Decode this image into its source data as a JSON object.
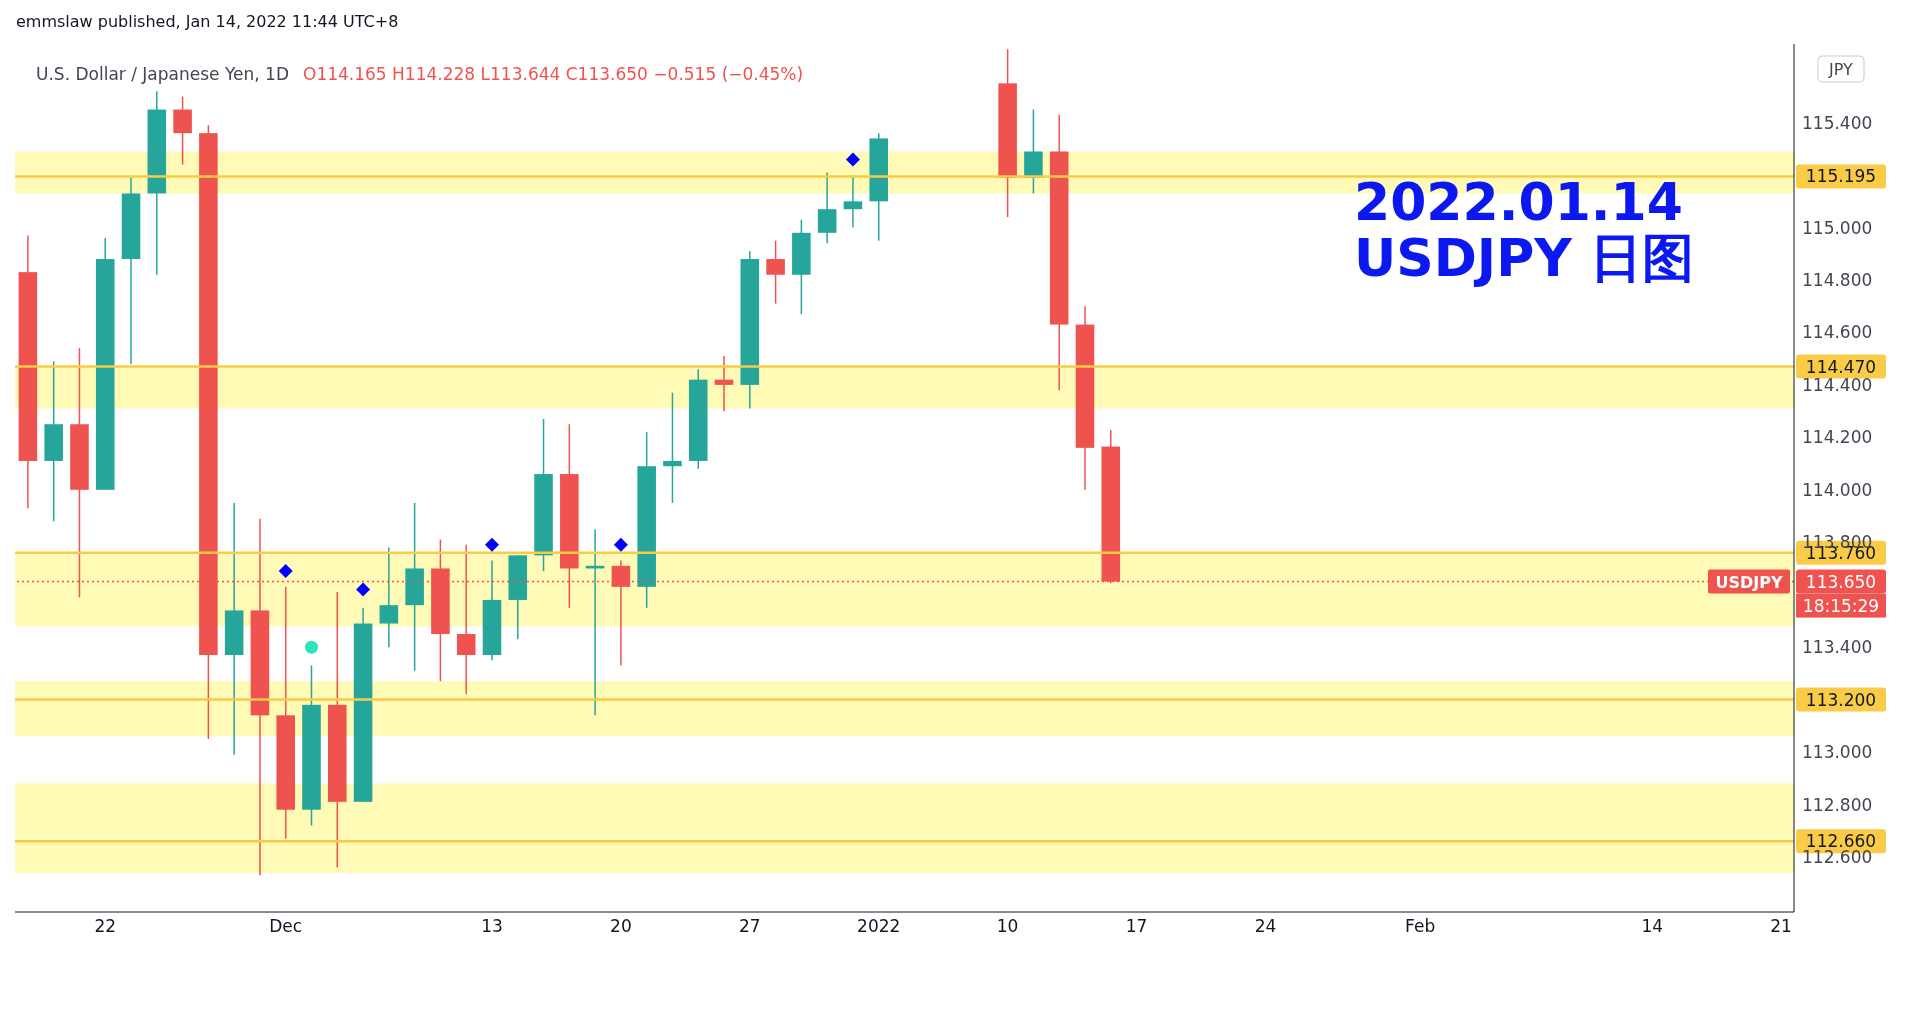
{
  "chart_data": {
    "type": "candlestick",
    "title": "2022.01.14",
    "subtitle": "USDJPY 日图",
    "ylabel": "JPY",
    "categories": [
      null,
      null,
      null,
      "22",
      null,
      null,
      null,
      null,
      null,
      null,
      "Dec",
      null,
      null,
      null,
      null,
      null,
      null,
      null,
      "13",
      null,
      null,
      null,
      null,
      "20",
      null,
      null,
      null,
      null,
      "27",
      null,
      null,
      null,
      null,
      "2022",
      null,
      null,
      null,
      null,
      "10",
      null,
      null,
      null,
      null,
      "17",
      null,
      null,
      null,
      null,
      "24",
      null,
      null,
      null,
      null,
      null,
      "Feb",
      null,
      null,
      null,
      null,
      null,
      null,
      null,
      null,
      "14",
      null,
      null,
      null,
      null,
      "21"
    ],
    "ohlc": [
      [
        114.83,
        114.97,
        113.93,
        114.11
      ],
      [
        114.11,
        114.49,
        113.88,
        114.25
      ],
      [
        114.25,
        114.54,
        113.59,
        114.0
      ],
      [
        114.0,
        114.96,
        114.0,
        114.88
      ],
      [
        114.88,
        115.19,
        114.48,
        115.13
      ],
      [
        115.13,
        115.52,
        114.82,
        115.45
      ],
      [
        115.45,
        115.5,
        115.24,
        115.36
      ],
      [
        115.36,
        115.39,
        113.05,
        113.37
      ],
      [
        113.37,
        113.95,
        112.99,
        113.54
      ],
      [
        113.54,
        113.89,
        112.53,
        113.14
      ],
      [
        113.14,
        113.63,
        112.67,
        112.78
      ],
      [
        112.78,
        113.33,
        112.72,
        113.18
      ],
      [
        113.18,
        113.61,
        112.56,
        112.81
      ],
      [
        112.81,
        113.55,
        112.81,
        113.49
      ],
      [
        113.49,
        113.78,
        113.4,
        113.56
      ],
      [
        113.56,
        113.95,
        113.31,
        113.7
      ],
      [
        113.7,
        113.81,
        113.27,
        113.45
      ],
      [
        113.45,
        113.79,
        113.22,
        113.37
      ],
      [
        113.37,
        113.73,
        113.35,
        113.58
      ],
      [
        113.58,
        113.75,
        113.43,
        113.75
      ],
      [
        113.75,
        114.27,
        113.69,
        114.06
      ],
      [
        114.06,
        114.25,
        113.55,
        113.7
      ],
      [
        113.7,
        113.85,
        113.14,
        113.71
      ],
      [
        113.71,
        113.73,
        113.33,
        113.63
      ],
      [
        113.63,
        114.22,
        113.55,
        114.09
      ],
      [
        114.09,
        114.37,
        113.95,
        114.11
      ],
      [
        114.11,
        114.46,
        114.08,
        114.42
      ],
      [
        114.42,
        114.51,
        114.3,
        114.4
      ],
      [
        114.4,
        114.91,
        114.31,
        114.88
      ],
      [
        114.88,
        114.95,
        114.71,
        114.82
      ],
      [
        114.82,
        115.03,
        114.67,
        114.98
      ],
      [
        114.98,
        115.21,
        114.94,
        115.07
      ],
      [
        115.07,
        115.2,
        115.0,
        115.1
      ],
      [
        115.1,
        115.36,
        114.95,
        115.34
      ],
      null,
      null,
      null,
      null,
      [
        115.55,
        115.68,
        115.04,
        115.19
      ],
      [
        115.19,
        115.45,
        115.13,
        115.29
      ],
      [
        115.29,
        115.43,
        114.38,
        114.63
      ],
      [
        114.63,
        114.7,
        114.0,
        114.16
      ],
      [
        114.165,
        114.228,
        113.644,
        113.65
      ],
      null,
      null,
      null,
      null,
      null,
      null,
      null,
      null,
      null,
      null,
      null,
      null,
      null,
      null,
      null,
      null,
      null,
      null,
      null,
      null,
      null,
      null,
      null,
      null,
      null,
      null
    ],
    "colors": [
      "#ef5350",
      "#26a69a",
      "#ef5350",
      "#26a69a",
      "#26a69a",
      "#26a69a",
      "#ef5350",
      "#ef5350",
      "#26a69a",
      "#ef5350",
      "#ef5350",
      "#26a69a",
      "#ef5350",
      "#26a69a",
      "#26a69a",
      "#26a69a",
      "#ef5350",
      "#ef5350",
      "#26a69a",
      "#26a69a",
      "#26a69a",
      "#ef5350",
      "#26a69a",
      "#ef5350",
      "#26a69a",
      "#26a69a",
      "#26a69a",
      "#ef5350",
      "#26a69a",
      "#ef5350",
      "#26a69a",
      "#26a69a",
      "#26a69a",
      "#26a69a",
      null,
      null,
      null,
      null,
      "#ef5350",
      "#26a69a",
      "#ef5350",
      "#ef5350",
      "#ef5350",
      null,
      null,
      null,
      null,
      null,
      null,
      null,
      null,
      null,
      null,
      null,
      null,
      null,
      null,
      null,
      null,
      null,
      null,
      null,
      null,
      null,
      null,
      null,
      null,
      null,
      null
    ],
    "series": [
      {
        "type": "scatter",
        "marker": "diamond",
        "color": "#0000ff",
        "values": [
          null,
          null,
          null,
          null,
          null,
          null,
          null,
          null,
          null,
          null,
          113.69,
          null,
          null,
          113.62,
          null,
          null,
          null,
          null,
          113.79,
          null,
          null,
          null,
          null,
          113.79,
          null,
          null,
          null,
          null,
          null,
          null,
          null,
          null,
          115.26,
          null,
          null,
          null,
          null,
          null,
          null,
          null,
          null,
          null,
          null,
          null,
          null,
          null,
          null,
          null,
          null,
          null,
          null,
          null,
          null,
          null,
          null,
          null,
          null,
          null,
          null,
          null,
          null,
          null,
          null,
          null,
          null,
          null,
          null,
          null,
          null
        ]
      },
      {
        "type": "scatter",
        "marker": "circle",
        "color": "#2ee6b5",
        "values": [
          null,
          null,
          null,
          null,
          null,
          null,
          null,
          null,
          null,
          null,
          null,
          113.4,
          null,
          null,
          null,
          null,
          null,
          null,
          null,
          null,
          null,
          null,
          null,
          null,
          null,
          null,
          null,
          null,
          null,
          null,
          null,
          null,
          null,
          null,
          null,
          null,
          null,
          null,
          null,
          null,
          null,
          null,
          null,
          null,
          null,
          null,
          null,
          null,
          null,
          null,
          null,
          null,
          null,
          null,
          null,
          null,
          null,
          null,
          null,
          null,
          null,
          null,
          null,
          null,
          null,
          null,
          null,
          null,
          null
        ]
      }
    ],
    "ylim": [
      112.39,
      115.7
    ],
    "yticks": [
      {
        "value": 112.6,
        "label": "112.600"
      },
      {
        "value": 112.8,
        "label": "112.800"
      },
      {
        "value": 113.0,
        "label": "113.000"
      },
      {
        "value": 113.4,
        "label": "113.400"
      },
      {
        "value": 113.8,
        "label": "113.800"
      },
      {
        "value": 114.0,
        "label": "114.000"
      },
      {
        "value": 114.2,
        "label": "114.200"
      },
      {
        "value": 114.4,
        "label": "114.400"
      },
      {
        "value": 114.6,
        "label": "114.600"
      },
      {
        "value": 114.8,
        "label": "114.800"
      },
      {
        "value": 115.0,
        "label": "115.000"
      },
      {
        "value": 115.4,
        "label": "115.400"
      }
    ],
    "bands": [
      {
        "axis": "y",
        "from": 115.13,
        "to": 115.29,
        "color": "#fffab5"
      },
      {
        "axis": "y",
        "from": 114.31,
        "to": 114.47,
        "color": "#fffab5"
      },
      {
        "axis": "y",
        "from": 113.48,
        "to": 113.76,
        "color": "#fffab5"
      },
      {
        "axis": "y",
        "from": 113.06,
        "to": 113.27,
        "color": "#fffab5"
      },
      {
        "axis": "y",
        "from": 112.54,
        "to": 112.88,
        "color": "#fffab5"
      }
    ],
    "ref_lines": [
      {
        "axis": "y",
        "value": 115.195,
        "label": "115.195",
        "color": "#f9cb47"
      },
      {
        "axis": "y",
        "value": 114.47,
        "label": "114.470",
        "color": "#f9cb47"
      },
      {
        "axis": "y",
        "value": 113.76,
        "label": "113.760",
        "color": "#f9cb47"
      },
      {
        "axis": "y",
        "value": 113.2,
        "label": "113.200",
        "color": "#f9cb47"
      },
      {
        "axis": "y",
        "value": 112.66,
        "label": "112.660",
        "color": "#f9cb47"
      },
      {
        "axis": "y",
        "value": 113.65,
        "label": "113.650",
        "color": "#ef5350",
        "line_style": "dotted"
      }
    ],
    "annotations": [
      "emmslaw published, Jan 14, 2022 11:44 UTC+8",
      "U.S. Dollar / Japanese Yen, 1D",
      "O114.165 H114.228 L113.644 C113.650 −0.515 (−0.45%)",
      "USDJPY",
      "18:15:29"
    ]
  }
}
